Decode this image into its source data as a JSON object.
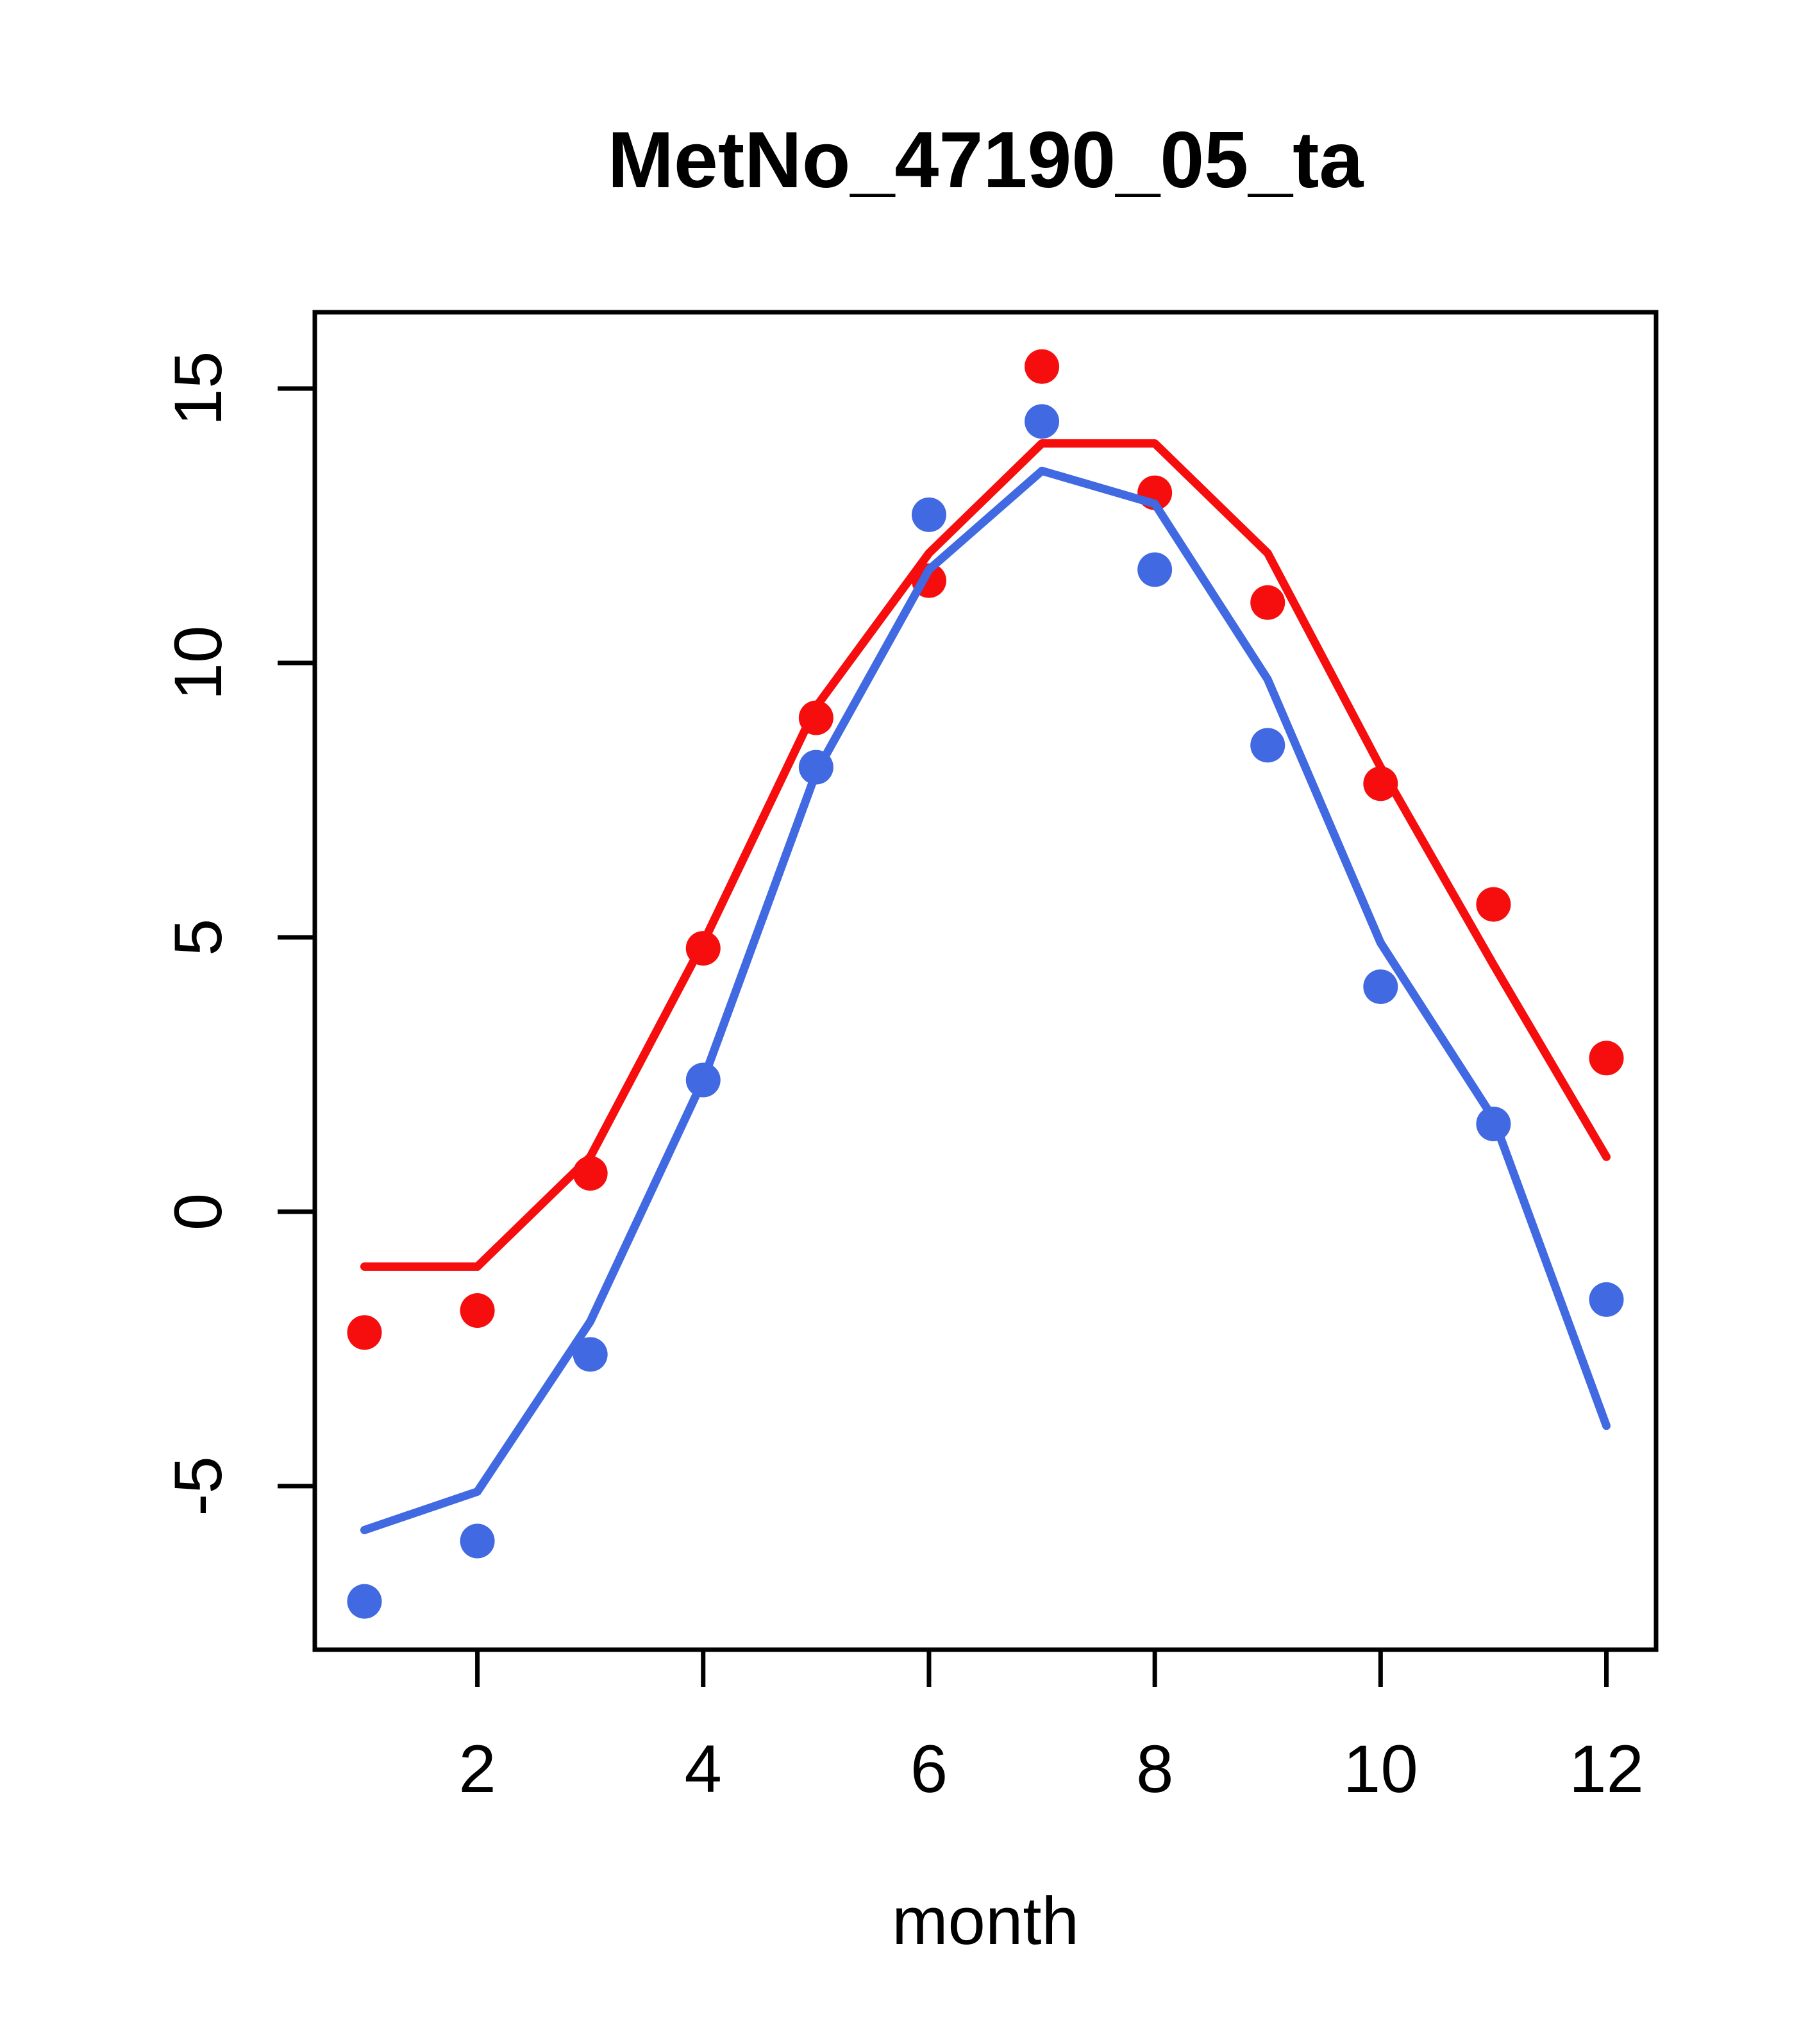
{
  "chart_data": {
    "type": "line",
    "title": "MetNo_47190_05_ta",
    "xlabel": "month",
    "ylabel": "",
    "x": [
      1,
      2,
      3,
      4,
      5,
      6,
      7,
      8,
      9,
      10,
      11,
      12
    ],
    "xticks": [
      2,
      4,
      6,
      8,
      10,
      12
    ],
    "yticks": [
      -5,
      0,
      5,
      10,
      15
    ],
    "xlim": [
      0.56,
      12.44
    ],
    "ylim": [
      -7.98,
      16.39
    ],
    "grid": "off",
    "legend": "none",
    "series": [
      {
        "name": "red-points",
        "style": "scatter",
        "color": "#f60d0d",
        "values": [
          -2.2,
          -1.8,
          0.7,
          4.8,
          9.0,
          11.5,
          15.4,
          13.1,
          11.1,
          7.8,
          5.6,
          2.8
        ]
      },
      {
        "name": "red-line",
        "style": "line",
        "color": "#f60d0d",
        "values": [
          -1.0,
          -1.0,
          1.0,
          4.9,
          9.2,
          12.0,
          14.0,
          14.0,
          12.0,
          8.1,
          4.5,
          1.0
        ]
      },
      {
        "name": "blue-points",
        "style": "scatter",
        "color": "#4169e1",
        "values": [
          -7.1,
          -6.0,
          -2.6,
          2.4,
          8.1,
          12.7,
          14.4,
          11.7,
          8.5,
          4.1,
          1.6,
          -1.6
        ]
      },
      {
        "name": "blue-line",
        "style": "line",
        "color": "#4169e1",
        "values": [
          -5.8,
          -5.1,
          -2.0,
          2.4,
          8.0,
          11.7,
          13.5,
          12.9,
          9.7,
          4.9,
          1.7,
          -3.9
        ]
      }
    ]
  }
}
